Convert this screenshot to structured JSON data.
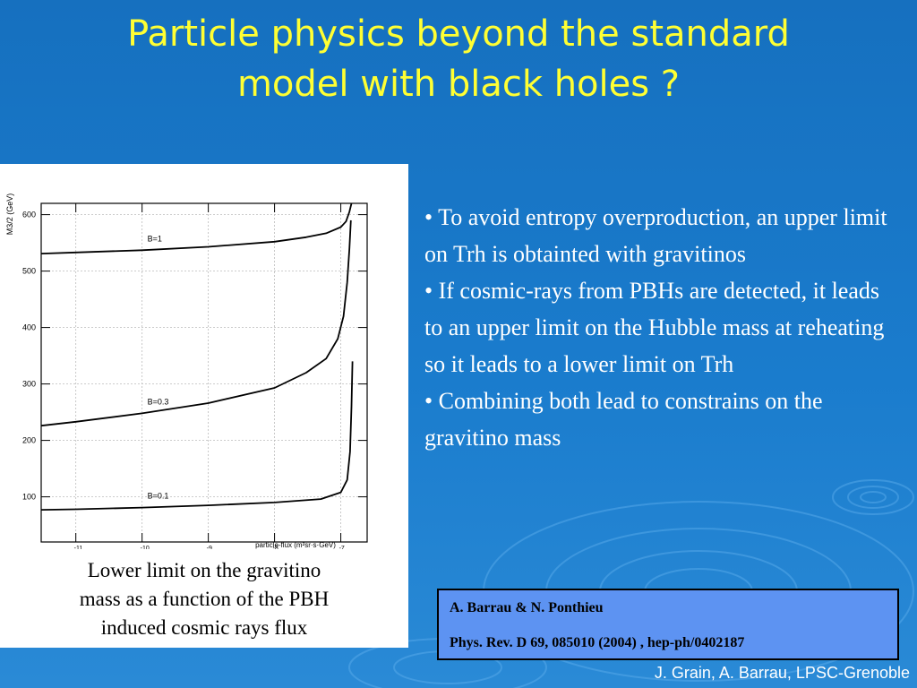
{
  "title": {
    "line1": "Particle physics beyond the standard",
    "line2": "model with black holes ?"
  },
  "chart_data": {
    "type": "line",
    "title": "",
    "xlabel": "particle-flux (m²sr·s·GeV)",
    "ylabel": "M3/2 (GeV)",
    "xscale": "log",
    "xlim": [
      3e-12,
      2.5e-07
    ],
    "ylim": [
      20,
      620
    ],
    "x_ticks": [
      1e-11,
      1e-10,
      1e-09,
      1e-08,
      1e-07
    ],
    "x_tick_labels": [
      {
        "base": "10",
        "exp": "-11"
      },
      {
        "base": "10",
        "exp": "-10"
      },
      {
        "base": "10",
        "exp": "-9"
      },
      {
        "base": "10",
        "exp": "-8"
      },
      {
        "base": "10",
        "exp": "-7"
      }
    ],
    "y_ticks": [
      100,
      200,
      300,
      400,
      500,
      600
    ],
    "grid": true,
    "series": [
      {
        "name": "B=1",
        "x": [
          3e-12,
          1e-11,
          1e-10,
          1e-09,
          1e-08,
          3e-08,
          6e-08,
          1e-07,
          1.2e-07,
          1.35e-07,
          1.45e-07
        ],
        "y": [
          531,
          533,
          537,
          543,
          552,
          560,
          567,
          578,
          588,
          605,
          620
        ]
      },
      {
        "name": "B=0.3",
        "x": [
          3e-12,
          1e-11,
          1e-10,
          1e-09,
          1e-08,
          3e-08,
          6e-08,
          9e-08,
          1.1e-07,
          1.25e-07,
          1.35e-07,
          1.42e-07
        ],
        "y": [
          226,
          233,
          248,
          266,
          293,
          320,
          345,
          380,
          420,
          480,
          540,
          590
        ]
      },
      {
        "name": "B=0.1",
        "x": [
          3e-12,
          1e-11,
          1e-10,
          1e-09,
          1e-08,
          5e-08,
          1e-07,
          1.25e-07,
          1.38e-07,
          1.45e-07,
          1.5e-07
        ],
        "y": [
          77,
          78,
          81,
          85,
          90,
          96,
          108,
          130,
          180,
          260,
          340
        ]
      }
    ]
  },
  "caption": {
    "line1": "Lower limit on the gravitino",
    "line2": "mass as a function of the PBH",
    "line3": "induced cosmic rays flux"
  },
  "bullets": [
    "• To avoid entropy overproduction, an upper limit on Trh is obtainted with gravitinos",
    "• If cosmic-rays from PBHs are detected, it leads to an upper limit on the Hubble mass at reheating so it leads to a lower limit on Trh",
    "• Combining both lead to constrains on the gravitino mass"
  ],
  "reference": {
    "authors": "A. Barrau & N. Ponthieu",
    "citation": "Phys. Rev. D 69, 085010 (2004) , hep-ph/0402187"
  },
  "footer": "J. Grain, A. Barrau, LPSC-Grenoble",
  "colors": {
    "background": "#1a75c6",
    "title": "#ffff33",
    "reference_box": "#5d93f2"
  }
}
